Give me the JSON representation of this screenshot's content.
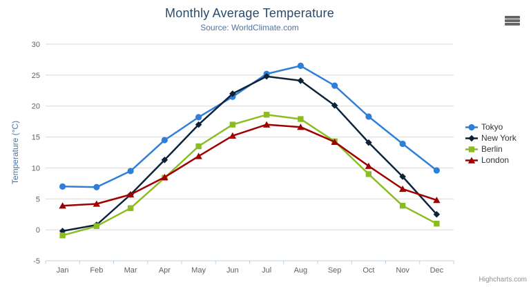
{
  "credits": "Highcharts.com",
  "chart_data": {
    "type": "line",
    "title": "Monthly Average Temperature",
    "subtitle": "Source: WorldClimate.com",
    "categories": [
      "Jan",
      "Feb",
      "Mar",
      "Apr",
      "May",
      "Jun",
      "Jul",
      "Aug",
      "Sep",
      "Oct",
      "Nov",
      "Dec"
    ],
    "series": [
      {
        "name": "Tokyo",
        "color": "#2f7ed8",
        "marker": "circle",
        "values": [
          7.0,
          6.9,
          9.5,
          14.5,
          18.2,
          21.5,
          25.2,
          26.5,
          23.3,
          18.3,
          13.9,
          9.6
        ]
      },
      {
        "name": "New York",
        "color": "#0d233a",
        "marker": "diamond",
        "values": [
          -0.2,
          0.8,
          5.7,
          11.3,
          17.0,
          22.0,
          24.8,
          24.1,
          20.1,
          14.1,
          8.6,
          2.5
        ]
      },
      {
        "name": "Berlin",
        "color": "#8bbc21",
        "marker": "square",
        "values": [
          -0.9,
          0.6,
          3.5,
          8.4,
          13.5,
          17.0,
          18.6,
          17.9,
          14.3,
          9.0,
          3.9,
          1.0
        ]
      },
      {
        "name": "London",
        "color": "#a00000",
        "marker": "triangle",
        "values": [
          3.9,
          4.2,
          5.7,
          8.5,
          11.9,
          15.2,
          17.0,
          16.6,
          14.2,
          10.3,
          6.6,
          4.8
        ]
      }
    ],
    "xlabel": "",
    "ylabel": "Temperature (°C)",
    "ylim": [
      -5,
      30
    ],
    "ytick_step": 5,
    "grid": true,
    "legend_position": "right",
    "colors": {
      "title": "#274b6d",
      "subtitle": "#4d759e",
      "axis_label": "#606060",
      "axis_title": "#4d759e",
      "axis_line": "#c0d0e0",
      "gridline": "#d8d8d8",
      "legend_text": "#333333",
      "credits_text": "#909090"
    }
  }
}
